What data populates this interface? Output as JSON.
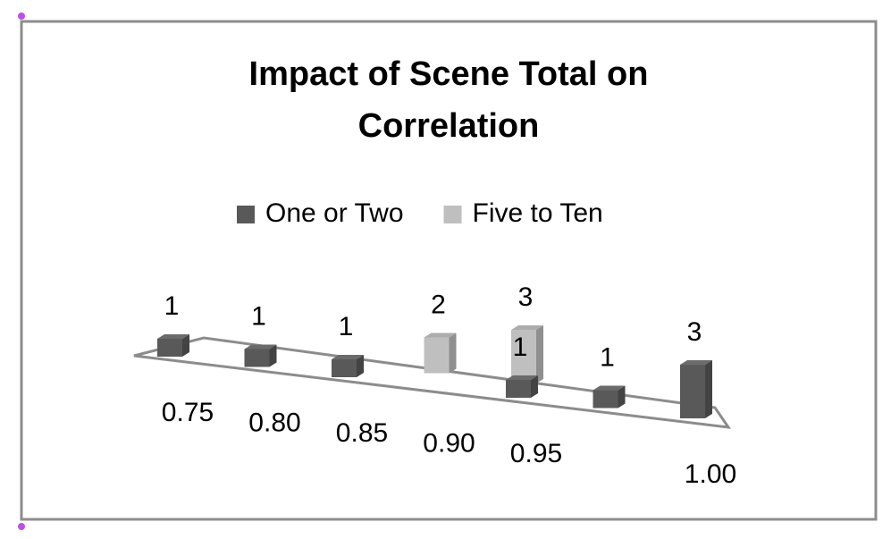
{
  "chart_data": {
    "type": "bar3d",
    "title": "Impact of Scene Total on Correlation",
    "categories": [
      "0.75",
      "0.80",
      "0.85",
      "0.90",
      "0.95",
      null,
      "1.00"
    ],
    "series": [
      {
        "name": "One or Two",
        "color": "#595959",
        "values": [
          1,
          1,
          1,
          null,
          1,
          1,
          3
        ]
      },
      {
        "name": "Five to Ten",
        "color": "#bfbfbf",
        "values": [
          null,
          null,
          null,
          2,
          3,
          null,
          null
        ]
      }
    ],
    "legend": "top"
  }
}
